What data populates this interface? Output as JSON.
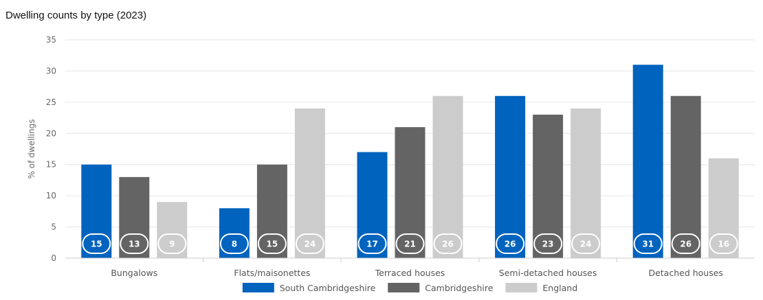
{
  "chart_data": {
    "type": "bar",
    "title": "Dwelling counts by type (2023)",
    "xlabel": "",
    "ylabel": "% of dwellings",
    "ylim": [
      0,
      35
    ],
    "yticks": [
      0,
      5,
      10,
      15,
      20,
      25,
      30,
      35
    ],
    "grid": "horizontal",
    "legend_position": "bottom",
    "categories": [
      "Bungalows",
      "Flats/maisonettes",
      "Terraced houses",
      "Semi-detached houses",
      "Detached houses"
    ],
    "series": [
      {
        "name": "South Cambridgeshire",
        "color": "#0063be",
        "label_text_color": "#ffffff",
        "values": [
          15,
          8,
          17,
          26,
          31
        ]
      },
      {
        "name": "Cambridgeshire",
        "color": "#646464",
        "label_text_color": "#ffffff",
        "values": [
          13,
          15,
          21,
          23,
          26
        ]
      },
      {
        "name": "England",
        "color": "#cccccc",
        "label_text_color": "#ffffff",
        "values": [
          9,
          24,
          26,
          24,
          16
        ]
      }
    ]
  }
}
